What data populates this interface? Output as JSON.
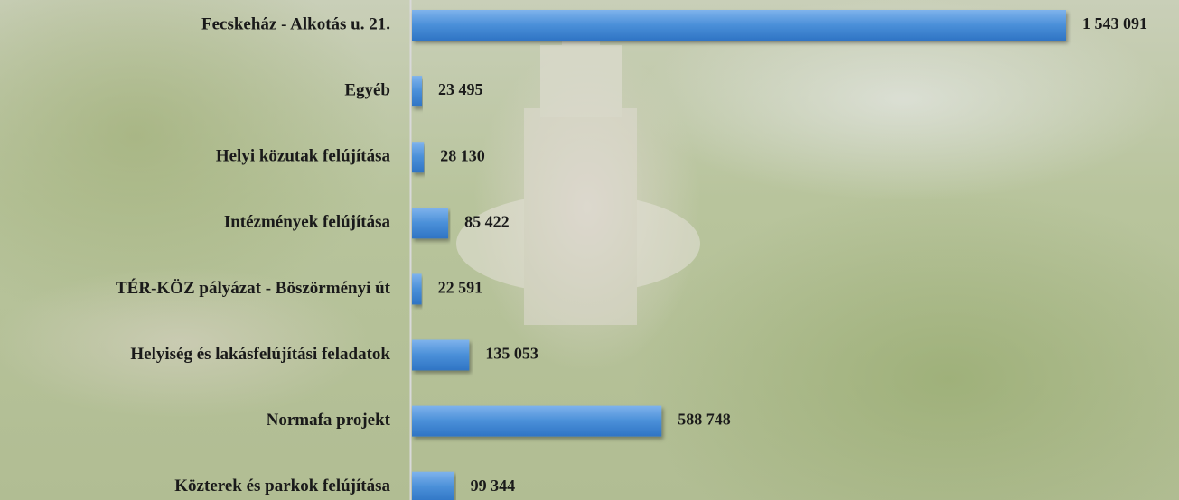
{
  "chart_data": {
    "type": "barh",
    "categories": [
      "Fecskeház - Alkotás u. 21.",
      "Egyéb",
      "Helyi közutak felújítása",
      "Intézmények felújítása",
      "TÉR-KÖZ pályázat - Böszörményi út",
      "Helyiség és lakásfelújítási feladatok",
      "Normafa projekt",
      "Közterek és parkok felújítása"
    ],
    "values": [
      1543091,
      23495,
      28130,
      85422,
      22591,
      135053,
      588748,
      99344
    ],
    "value_labels": [
      "1 543 091",
      "23 495",
      "28 130",
      "85 422",
      "22 591",
      "135 053",
      "588 748",
      "99 344"
    ],
    "color": "#4a8fd8"
  }
}
